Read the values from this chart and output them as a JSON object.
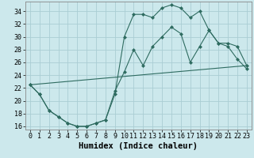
{
  "xlabel": "Humidex (Indice chaleur)",
  "bg_color": "#cce8ec",
  "grid_color": "#aacdd4",
  "line_color": "#2e6b60",
  "xlim": [
    -0.5,
    23.5
  ],
  "ylim": [
    15.5,
    35.5
  ],
  "xticks": [
    0,
    1,
    2,
    3,
    4,
    5,
    6,
    7,
    8,
    9,
    10,
    11,
    12,
    13,
    14,
    15,
    16,
    17,
    18,
    19,
    20,
    21,
    22,
    23
  ],
  "yticks": [
    16,
    18,
    20,
    22,
    24,
    26,
    28,
    30,
    32,
    34
  ],
  "line1_x": [
    0,
    1,
    2,
    3,
    4,
    5,
    6,
    7,
    8,
    9,
    10,
    11,
    12,
    13,
    14,
    15,
    16,
    17,
    18,
    19,
    20,
    21,
    22,
    23
  ],
  "line1_y": [
    22.5,
    21.0,
    18.5,
    17.5,
    16.5,
    16.0,
    16.0,
    16.5,
    17.0,
    21.0,
    30.0,
    33.5,
    33.5,
    33.0,
    34.5,
    35.0,
    34.5,
    33.0,
    34.0,
    31.0,
    29.0,
    28.5,
    26.5,
    25.0
  ],
  "line2_x": [
    0,
    1,
    2,
    3,
    4,
    5,
    6,
    7,
    8,
    9,
    10,
    11,
    12,
    13,
    14,
    15,
    16,
    17,
    18,
    19,
    20,
    21,
    22,
    23
  ],
  "line2_y": [
    22.5,
    21.0,
    18.5,
    17.5,
    16.5,
    16.0,
    16.0,
    16.5,
    17.0,
    21.5,
    24.5,
    28.0,
    25.5,
    28.5,
    30.0,
    31.5,
    30.5,
    26.0,
    28.5,
    31.0,
    29.0,
    29.0,
    28.5,
    25.5
  ],
  "line3_x": [
    0,
    23
  ],
  "line3_y": [
    22.5,
    25.5
  ],
  "marker_size": 2.5,
  "xlabel_fontsize": 7.5,
  "tick_fontsize": 6.0
}
